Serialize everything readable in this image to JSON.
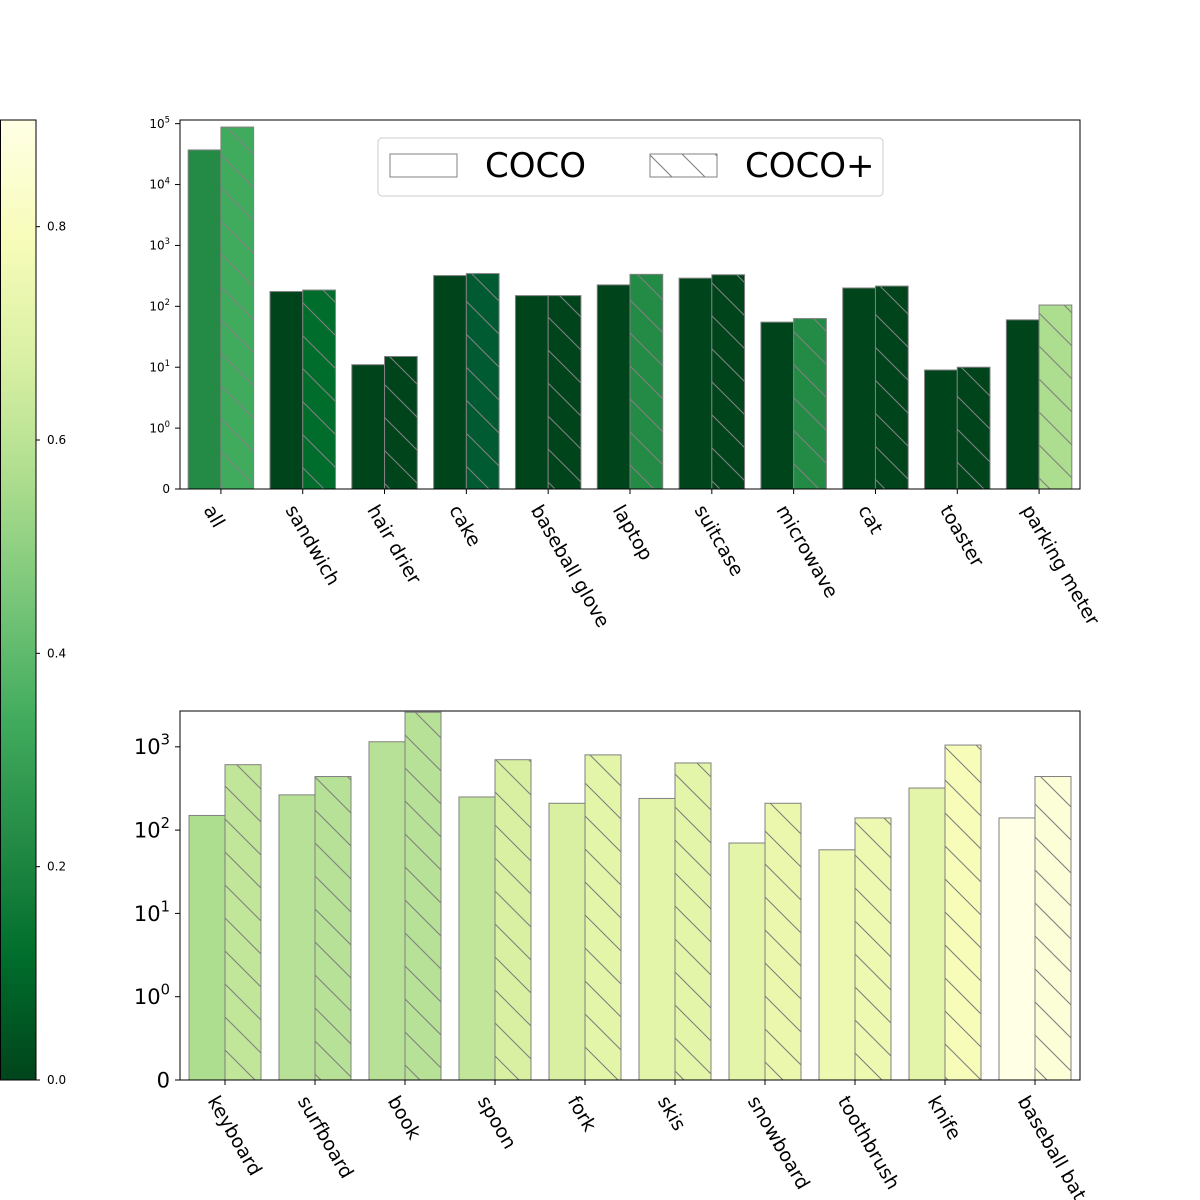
{
  "chart_data": [
    {
      "type": "bar",
      "scale": "symlog",
      "categories": [
        "all",
        "sandwich",
        "hair drier",
        "cake",
        "baseball glove",
        "laptop",
        "suitcase",
        "microwave",
        "cat",
        "toaster",
        "parking meter"
      ],
      "series": [
        {
          "name": "COCO",
          "hatch": false,
          "values": [
            37000,
            175,
            11,
            320,
            150,
            225,
            290,
            55,
            200,
            9,
            60
          ],
          "colors": [
            "#238b45",
            "#00441b",
            "#00441b",
            "#00441b",
            "#00441b",
            "#00441b",
            "#00441b",
            "#00441b",
            "#00441b",
            "#00441b",
            "#00441b"
          ]
        },
        {
          "name": "COCO+",
          "hatch": true,
          "values": [
            88000,
            185,
            15,
            345,
            150,
            335,
            330,
            63,
            215,
            10,
            105
          ],
          "colors": [
            "#41ab5d",
            "#006d2c",
            "#00441b",
            "#005a32",
            "#00441b",
            "#238b45",
            "#00441b",
            "#238b45",
            "#00441b",
            "#00441b",
            "#addd8e"
          ]
        }
      ],
      "yticks": [
        {
          "value": 0,
          "label": "0"
        },
        {
          "value": 1,
          "label": "10",
          "exp": "0"
        },
        {
          "value": 10,
          "label": "10",
          "exp": "1"
        },
        {
          "value": 100,
          "label": "10",
          "exp": "2"
        },
        {
          "value": 1000,
          "label": "10",
          "exp": "3"
        },
        {
          "value": 10000,
          "label": "10",
          "exp": "4"
        },
        {
          "value": 100000,
          "label": "10",
          "exp": "5"
        }
      ],
      "legend": {
        "placement": "top-center",
        "entries": [
          "COCO",
          "COCO+"
        ]
      }
    },
    {
      "type": "bar",
      "scale": "symlog",
      "categories": [
        "keyboard",
        "surfboard",
        "book",
        "spoon",
        "fork",
        "skis",
        "snowboard",
        "toothbrush",
        "knife",
        "baseball bat"
      ],
      "series": [
        {
          "name": "COCO",
          "hatch": false,
          "values": [
            150,
            265,
            1150,
            250,
            210,
            240,
            70,
            58,
            320,
            140
          ],
          "colors": [
            "#addd8e",
            "#b7e196",
            "#b7e196",
            "#c2e699",
            "#d9f0a3",
            "#e3f5a9",
            "#e3f5a9",
            "#edf8b1",
            "#e3f5a9",
            "#ffffe5"
          ]
        },
        {
          "name": "COCO+",
          "hatch": true,
          "values": [
            610,
            440,
            2600,
            700,
            800,
            640,
            210,
            140,
            1050,
            440
          ],
          "colors": [
            "#c2e699",
            "#b7e196",
            "#b7e196",
            "#d9f0a3",
            "#e3f5a9",
            "#e3f5a9",
            "#eaf7ad",
            "#edf8b1",
            "#f7fcb9",
            "#fcfed8"
          ]
        }
      ],
      "yticks": [
        {
          "value": 0,
          "label": "0"
        },
        {
          "value": 1,
          "label": "10",
          "exp": "0"
        },
        {
          "value": 10,
          "label": "10",
          "exp": "1"
        },
        {
          "value": 100,
          "label": "10",
          "exp": "2"
        },
        {
          "value": 1000,
          "label": "10",
          "exp": "3"
        }
      ]
    }
  ],
  "colorbar": {
    "colormap": "YlGn_r",
    "range": [
      0.0,
      0.9
    ],
    "ticks": [
      {
        "value": 0.0,
        "label": "0.0"
      },
      {
        "value": 0.2,
        "label": "0.2"
      },
      {
        "value": 0.4,
        "label": "0.4"
      },
      {
        "value": 0.6,
        "label": "0.6"
      },
      {
        "value": 0.8,
        "label": "0.8"
      }
    ],
    "stops": [
      "#00441b",
      "#006d2c",
      "#238b45",
      "#41ab5d",
      "#78c679",
      "#addd8e",
      "#d9f0a3",
      "#f7fcb9",
      "#ffffe5"
    ]
  }
}
